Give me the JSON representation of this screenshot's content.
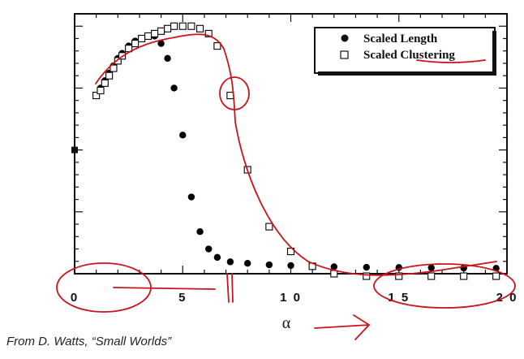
{
  "caption": "From D. Watts, “Small Worlds”",
  "chart_data": {
    "type": "scatter",
    "title": "",
    "xlabel": "α",
    "ylabel": "",
    "xlim": [
      0,
      20
    ],
    "ylim": [
      0,
      1.05
    ],
    "x_ticks": [
      0,
      5,
      10,
      15,
      20
    ],
    "x_tick_labels": [
      "0",
      "5",
      "1 0",
      "1 5",
      "2 0"
    ],
    "legend_position": "top-right",
    "grid": false,
    "series": [
      {
        "name": "Scaled Length",
        "marker": "filled-circle",
        "color": "#000000",
        "x": [
          1.0,
          1.2,
          1.4,
          1.6,
          1.8,
          2.0,
          2.2,
          2.5,
          2.8,
          3.1,
          3.4,
          3.7,
          4.0,
          4.3,
          4.6,
          5.0,
          5.4,
          5.8,
          6.2,
          6.6,
          7.2,
          8.0,
          9.0,
          10.0,
          11.0,
          12.0,
          13.5,
          15.0,
          16.5,
          18.0,
          19.5
        ],
        "y": [
          0.72,
          0.75,
          0.78,
          0.81,
          0.84,
          0.87,
          0.89,
          0.92,
          0.94,
          0.95,
          0.96,
          0.96,
          0.93,
          0.87,
          0.75,
          0.56,
          0.31,
          0.17,
          0.1,
          0.066,
          0.048,
          0.042,
          0.036,
          0.033,
          0.03,
          0.028,
          0.026,
          0.025,
          0.024,
          0.023,
          0.022
        ]
      },
      {
        "name": "Scaled Clustering",
        "marker": "open-square",
        "color": "#000000",
        "x": [
          1.0,
          1.2,
          1.4,
          1.6,
          1.8,
          2.0,
          2.2,
          2.5,
          2.8,
          3.1,
          3.4,
          3.7,
          4.0,
          4.3,
          4.6,
          5.0,
          5.4,
          5.8,
          6.2,
          6.6,
          7.2,
          8.0,
          9.0,
          10.0,
          11.0,
          12.0,
          13.5,
          15.0,
          16.5,
          18.0,
          19.5
        ],
        "y": [
          0.72,
          0.74,
          0.77,
          0.8,
          0.83,
          0.86,
          0.88,
          0.91,
          0.93,
          0.95,
          0.96,
          0.97,
          0.98,
          0.99,
          1.0,
          1.0,
          1.0,
          0.99,
          0.97,
          0.92,
          0.72,
          0.42,
          0.19,
          0.09,
          0.03,
          0.0,
          -0.01,
          -0.01,
          -0.01,
          -0.01,
          -0.01
        ]
      }
    ]
  }
}
